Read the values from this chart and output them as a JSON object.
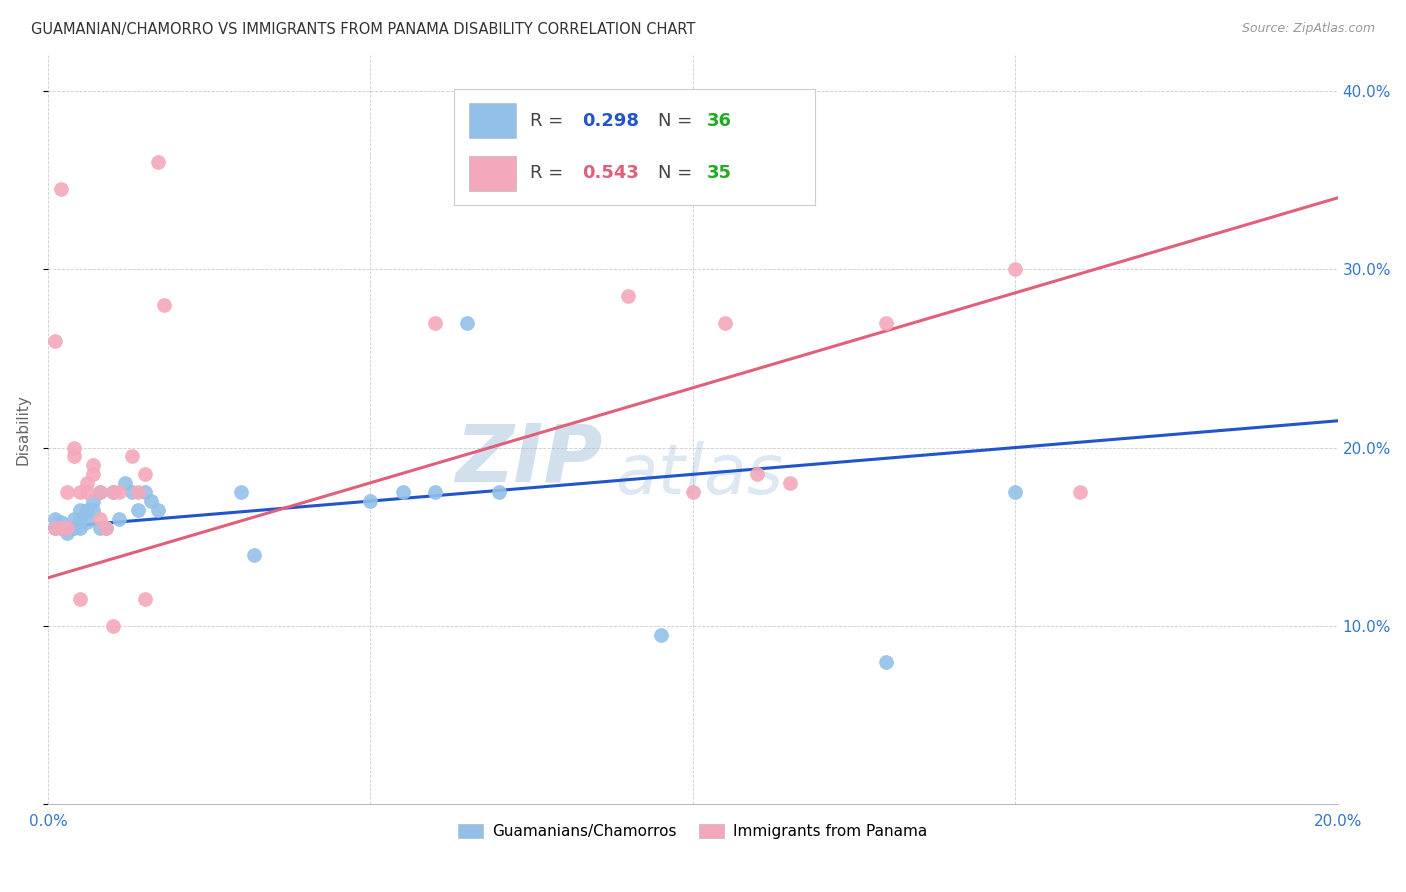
{
  "title": "GUAMANIAN/CHAMORRO VS IMMIGRANTS FROM PANAMA DISABILITY CORRELATION CHART",
  "source": "Source: ZipAtlas.com",
  "ylabel": "Disability",
  "xlim": [
    0.0,
    0.2
  ],
  "ylim": [
    0.0,
    0.42
  ],
  "blue_R": 0.298,
  "blue_N": 36,
  "pink_R": 0.543,
  "pink_N": 35,
  "blue_color": "#92C0E8",
  "pink_color": "#F4A8BB",
  "blue_line_color": "#2255CC",
  "pink_line_color": "#E0607A",
  "legend_R_color": "#2255CC",
  "legend_N_color": "#22AA22",
  "watermark_zip": "ZIP",
  "watermark_atlas": "atlas",
  "blue_x": [
    0.001,
    0.001,
    0.002,
    0.002,
    0.003,
    0.003,
    0.004,
    0.004,
    0.005,
    0.005,
    0.005,
    0.006,
    0.006,
    0.007,
    0.007,
    0.008,
    0.008,
    0.009,
    0.01,
    0.011,
    0.012,
    0.013,
    0.014,
    0.015,
    0.016,
    0.017,
    0.03,
    0.032,
    0.05,
    0.055,
    0.06,
    0.065,
    0.07,
    0.095,
    0.13,
    0.15
  ],
  "blue_y": [
    0.155,
    0.16,
    0.155,
    0.158,
    0.155,
    0.152,
    0.16,
    0.155,
    0.16,
    0.155,
    0.165,
    0.158,
    0.165,
    0.165,
    0.17,
    0.175,
    0.155,
    0.155,
    0.175,
    0.16,
    0.18,
    0.175,
    0.165,
    0.175,
    0.17,
    0.165,
    0.175,
    0.14,
    0.17,
    0.175,
    0.175,
    0.27,
    0.175,
    0.095,
    0.08,
    0.175
  ],
  "pink_x": [
    0.001,
    0.001,
    0.002,
    0.002,
    0.003,
    0.003,
    0.004,
    0.004,
    0.005,
    0.005,
    0.006,
    0.006,
    0.007,
    0.007,
    0.008,
    0.008,
    0.009,
    0.01,
    0.01,
    0.011,
    0.013,
    0.014,
    0.015,
    0.015,
    0.017,
    0.018,
    0.06,
    0.09,
    0.1,
    0.105,
    0.11,
    0.115,
    0.13,
    0.15,
    0.16
  ],
  "pink_y": [
    0.155,
    0.26,
    0.155,
    0.345,
    0.175,
    0.155,
    0.195,
    0.2,
    0.175,
    0.115,
    0.18,
    0.175,
    0.185,
    0.19,
    0.16,
    0.175,
    0.155,
    0.175,
    0.1,
    0.175,
    0.195,
    0.175,
    0.185,
    0.115,
    0.36,
    0.28,
    0.27,
    0.285,
    0.175,
    0.27,
    0.185,
    0.18,
    0.27,
    0.3,
    0.175
  ]
}
